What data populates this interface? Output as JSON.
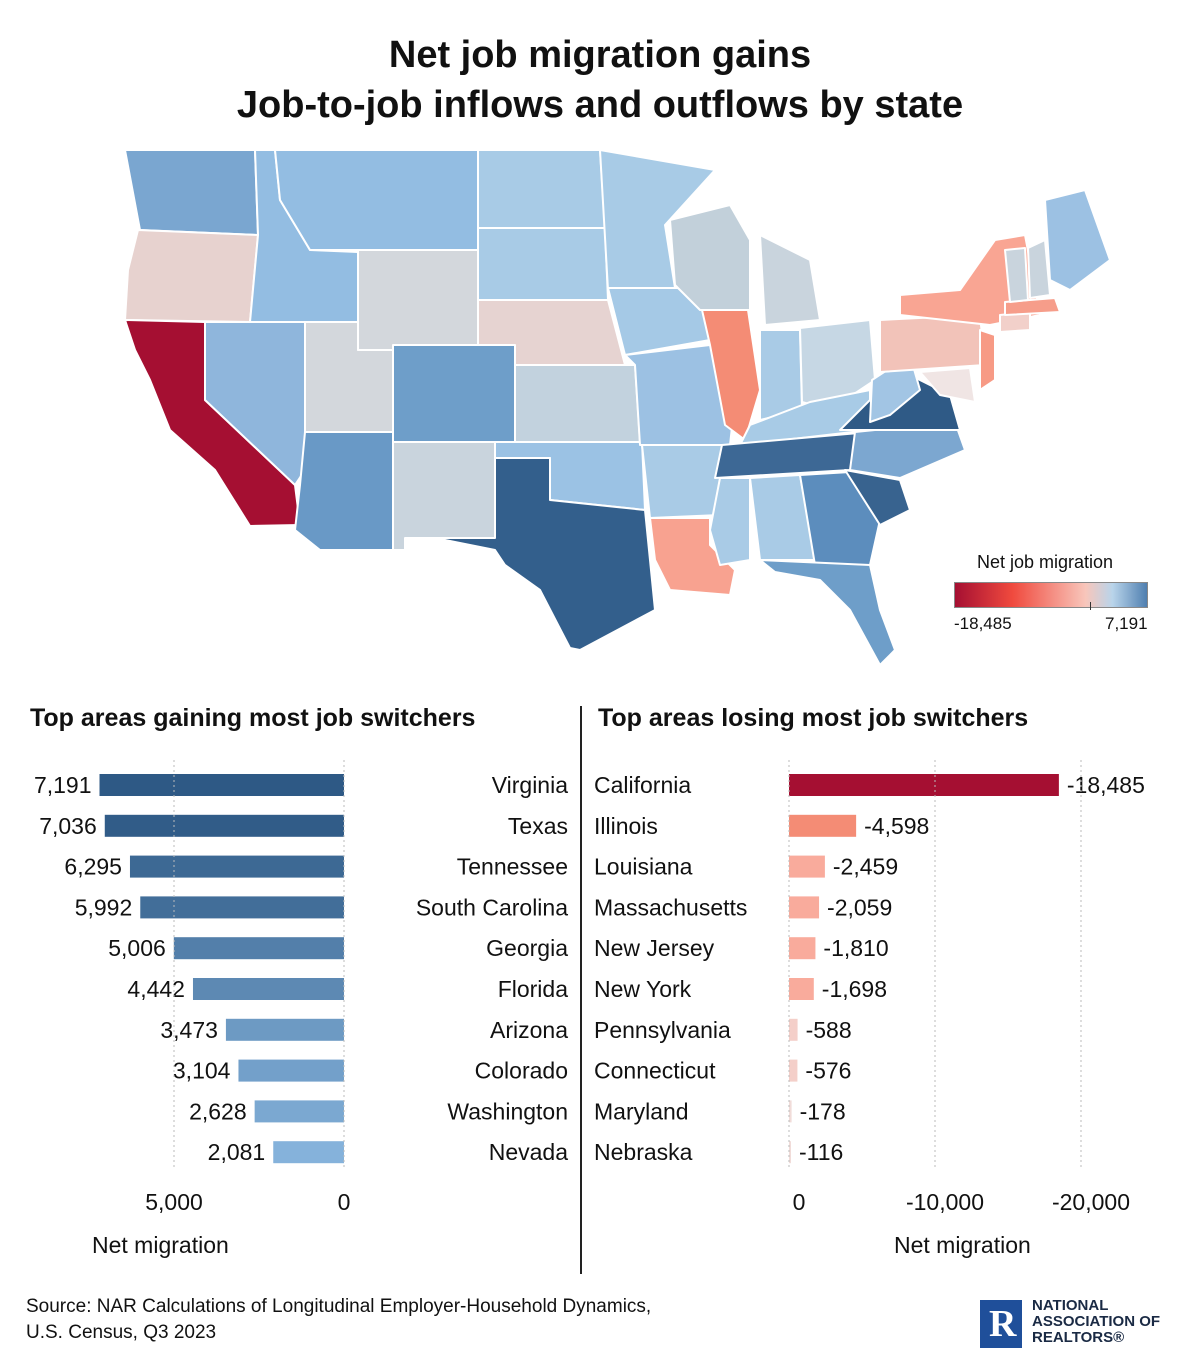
{
  "title_line1": "Net job migration gains",
  "title_line2": "Job-to-job inflows and outflows by state",
  "legend": {
    "title": "Net job migration",
    "min_label": "-18,485",
    "max_label": "7,191",
    "min": -18485,
    "max": 7191
  },
  "colors": {
    "strong_loss": "#a50f32",
    "loss": "#f08a72",
    "mild_loss": "#f8a89a",
    "neutral": "#d9dde0",
    "gain": "#7ea8d2",
    "strong_gain": "#345f8c"
  },
  "chart_data": [
    {
      "type": "map",
      "title": "Net job migration gains\nJob-to-job inflows and outflows by state",
      "legend_title": "Net job migration",
      "color_range": [
        -18485,
        7191
      ],
      "regions": [
        {
          "state": "Virginia",
          "value": 7191
        },
        {
          "state": "Texas",
          "value": 7036
        },
        {
          "state": "Tennessee",
          "value": 6295
        },
        {
          "state": "South Carolina",
          "value": 5992
        },
        {
          "state": "Georgia",
          "value": 5006
        },
        {
          "state": "Florida",
          "value": 4442
        },
        {
          "state": "Arizona",
          "value": 3473
        },
        {
          "state": "Colorado",
          "value": 3104
        },
        {
          "state": "Washington",
          "value": 2628
        },
        {
          "state": "Nevada",
          "value": 2081
        },
        {
          "state": "California",
          "value": -18485
        },
        {
          "state": "Illinois",
          "value": -4598
        },
        {
          "state": "Louisiana",
          "value": -2459
        },
        {
          "state": "Massachusetts",
          "value": -2059
        },
        {
          "state": "New Jersey",
          "value": -1810
        },
        {
          "state": "New York",
          "value": -1698
        },
        {
          "state": "Pennsylvania",
          "value": -588
        },
        {
          "state": "Connecticut",
          "value": -576
        },
        {
          "state": "Maryland",
          "value": -178
        },
        {
          "state": "Nebraska",
          "value": -116
        }
      ]
    },
    {
      "type": "bar",
      "title": "Top areas gaining most job switchers",
      "orientation": "horizontal",
      "direction": "right-to-left",
      "categories": [
        "Virginia",
        "Texas",
        "Tennessee",
        "South Carolina",
        "Georgia",
        "Florida",
        "Arizona",
        "Colorado",
        "Washington",
        "Nevada"
      ],
      "values": [
        7191,
        7036,
        6295,
        5992,
        5006,
        4442,
        3473,
        3104,
        2628,
        2081
      ],
      "labels": [
        "7,191",
        "7,036",
        "6,295",
        "5,992",
        "5,006",
        "4,442",
        "3,473",
        "3,104",
        "2,628",
        "2,081"
      ],
      "xlabel": "Net migration",
      "xlim": [
        0,
        7500
      ],
      "ticks": [
        {
          "value": 5000,
          "label": "5,000"
        },
        {
          "value": 0,
          "label": "0"
        }
      ]
    },
    {
      "type": "bar",
      "title": "Top areas losing most job switchers",
      "orientation": "horizontal",
      "direction": "left-to-right",
      "categories": [
        "California",
        "Illinois",
        "Louisiana",
        "Massachusetts",
        "New Jersey",
        "New York",
        "Pennsylvania",
        "Connecticut",
        "Maryland",
        "Nebraska"
      ],
      "values": [
        -18485,
        -4598,
        -2459,
        -2059,
        -1810,
        -1698,
        -588,
        -576,
        -178,
        -116
      ],
      "labels": [
        "-18,485",
        "-4,598",
        "-2,459",
        "-2,059",
        "-1,810",
        "-1,698",
        "-588",
        "-576",
        "-178",
        "-116"
      ],
      "xlabel": "Net migration",
      "xlim": [
        0,
        -20000
      ],
      "ticks": [
        {
          "value": 0,
          "label": "0"
        },
        {
          "value": -10000,
          "label": "-10,000"
        },
        {
          "value": -20000,
          "label": "-20,000"
        }
      ]
    }
  ],
  "source_line1": "Source: NAR Calculations of Longitudinal Employer-Household Dynamics,",
  "source_line2": "U.S. Census, Q3 2023",
  "logo": {
    "line1": "NATIONAL",
    "line2": "ASSOCIATION OF",
    "line3": "REALTORS®",
    "mark": "R"
  }
}
